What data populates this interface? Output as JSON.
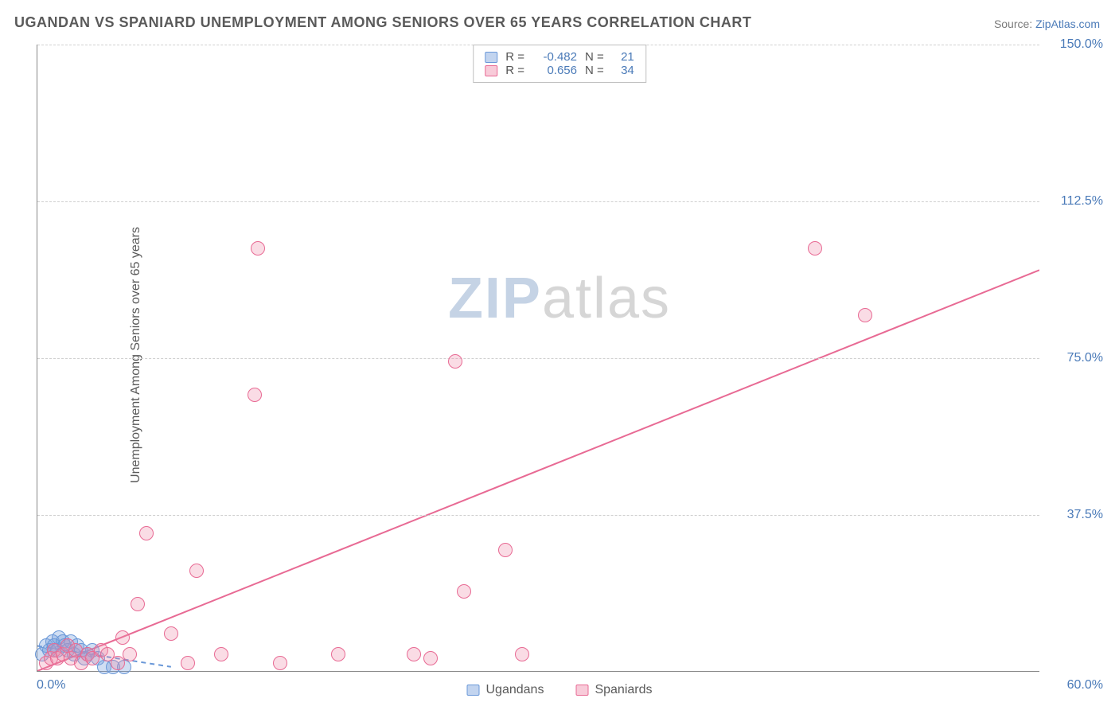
{
  "title": "UGANDAN VS SPANIARD UNEMPLOYMENT AMONG SENIORS OVER 65 YEARS CORRELATION CHART",
  "source_label": "Source:",
  "source_name": "ZipAtlas.com",
  "y_axis_label": "Unemployment Among Seniors over 65 years",
  "watermark_a": "ZIP",
  "watermark_b": "atlas",
  "chart": {
    "type": "scatter",
    "background_color": "#ffffff",
    "grid_color": "#d0d0d0",
    "grid_dash": "4,4",
    "axis_color": "#888888",
    "xlim": [
      0,
      60
    ],
    "ylim": [
      0,
      150
    ],
    "x_origin_label": "0.0%",
    "x_end_label": "60.0%",
    "yticks": [
      37.5,
      75.0,
      112.5,
      150.0
    ],
    "ytick_labels": [
      "37.5%",
      "75.0%",
      "112.5%",
      "150.0%"
    ],
    "tick_label_color": "#4a7ab8",
    "tick_fontsize": 16,
    "title_color": "#5a5a5a",
    "title_fontsize": 18,
    "marker_radius": 9,
    "marker_stroke_width": 1.5,
    "series": [
      {
        "name": "Ugandans",
        "fill": "rgba(120,160,220,0.35)",
        "stroke": "#6a98d8",
        "swatch_fill": "rgba(120,160,220,0.45)",
        "swatch_border": "#6a98d8",
        "R": "-0.482",
        "N": "21",
        "regression": {
          "x1": 0,
          "y1": 6,
          "x2": 8,
          "y2": 1,
          "color": "#6a98d8",
          "dash": "6,5",
          "width": 2
        },
        "points": [
          [
            0.3,
            4
          ],
          [
            0.5,
            6
          ],
          [
            0.7,
            5
          ],
          [
            0.9,
            7
          ],
          [
            1.0,
            6
          ],
          [
            1.2,
            5
          ],
          [
            1.3,
            8
          ],
          [
            1.5,
            7
          ],
          [
            1.6,
            6
          ],
          [
            1.8,
            5
          ],
          [
            2.0,
            7
          ],
          [
            2.2,
            4
          ],
          [
            2.4,
            6
          ],
          [
            2.6,
            5
          ],
          [
            2.8,
            3
          ],
          [
            3.0,
            4
          ],
          [
            3.3,
            5
          ],
          [
            3.6,
            3
          ],
          [
            4.0,
            1
          ],
          [
            4.5,
            1
          ],
          [
            5.2,
            1
          ]
        ]
      },
      {
        "name": "Spaniards",
        "fill": "rgba(240,140,170,0.30)",
        "stroke": "#e86a94",
        "swatch_fill": "rgba(240,140,170,0.45)",
        "swatch_border": "#e86a94",
        "R": "0.656",
        "N": "34",
        "regression": {
          "x1": 0,
          "y1": 0,
          "x2": 60,
          "y2": 96,
          "color": "#e86a94",
          "dash": "",
          "width": 2
        },
        "points": [
          [
            0.5,
            2
          ],
          [
            0.8,
            3
          ],
          [
            1.0,
            5
          ],
          [
            1.2,
            3
          ],
          [
            1.5,
            4
          ],
          [
            1.8,
            6
          ],
          [
            2.0,
            3
          ],
          [
            2.3,
            5
          ],
          [
            2.6,
            2
          ],
          [
            3.0,
            4
          ],
          [
            3.3,
            3
          ],
          [
            3.8,
            5
          ],
          [
            4.2,
            4
          ],
          [
            4.8,
            2
          ],
          [
            5.1,
            8
          ],
          [
            5.5,
            4
          ],
          [
            6.0,
            16
          ],
          [
            6.5,
            33
          ],
          [
            8.0,
            9
          ],
          [
            9.0,
            2
          ],
          [
            9.5,
            24
          ],
          [
            11.0,
            4
          ],
          [
            13.0,
            66
          ],
          [
            13.2,
            101
          ],
          [
            14.5,
            2
          ],
          [
            18.0,
            4
          ],
          [
            22.5,
            4
          ],
          [
            23.5,
            3
          ],
          [
            25.0,
            74
          ],
          [
            25.5,
            19
          ],
          [
            28.0,
            29
          ],
          [
            46.5,
            101
          ],
          [
            49.5,
            85
          ],
          [
            29.0,
            4
          ]
        ]
      }
    ]
  },
  "legend_top_labels": {
    "R": "R =",
    "N": "N ="
  },
  "legend_bottom": [
    "Ugandans",
    "Spaniards"
  ]
}
